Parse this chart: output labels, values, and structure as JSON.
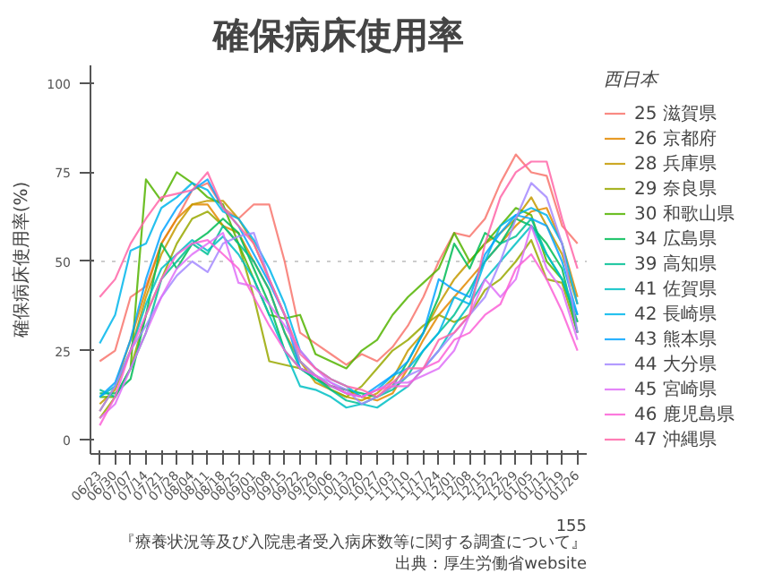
{
  "chart_data": {
    "type": "line",
    "title": "確保病床使用率",
    "ylabel": "確保病床使用率(%)",
    "legend_title": "西日本",
    "legend": "right",
    "categories": [
      "06/23",
      "06/30",
      "07/07",
      "07/14",
      "07/21",
      "07/28",
      "08/04",
      "08/11",
      "08/18",
      "08/25",
      "09/01",
      "09/08",
      "09/15",
      "09/22",
      "09/29",
      "10/06",
      "10/13",
      "10/20",
      "10/27",
      "11/03",
      "11/10",
      "11/17",
      "11/24",
      "12/01",
      "12/08",
      "12/15",
      "12/22",
      "12/29",
      "01/05",
      "01/12",
      "01/19",
      "01/26"
    ],
    "ylim": [
      -4,
      105
    ],
    "yticks": [
      0,
      25,
      50,
      75,
      100
    ],
    "ref_lines": [
      {
        "axis": "y",
        "value": 50,
        "color": "#cccccc",
        "line_style": "dotted"
      }
    ],
    "series": [
      {
        "name": "25 滋賀県",
        "color": "#F8766D",
        "values": [
          22,
          25,
          40,
          43,
          55,
          62,
          70,
          72,
          65,
          62,
          66,
          66,
          50,
          30,
          27,
          24,
          21,
          24,
          22,
          26,
          32,
          40,
          50,
          58,
          57,
          62,
          72,
          80,
          75,
          74,
          60,
          55
        ]
      },
      {
        "name": "26 京都府",
        "color": "#E38900",
        "values": [
          8,
          15,
          28,
          42,
          55,
          62,
          66,
          66,
          60,
          58,
          50,
          42,
          30,
          22,
          18,
          15,
          14,
          12,
          11,
          13,
          20,
          28,
          35,
          40,
          45,
          50,
          55,
          60,
          64,
          65,
          55,
          40
        ]
      },
      {
        "name": "28 兵庫県",
        "color": "#C49A00",
        "values": [
          10,
          14,
          25,
          40,
          52,
          60,
          66,
          67,
          67,
          62,
          55,
          45,
          35,
          22,
          16,
          14,
          12,
          11,
          13,
          17,
          25,
          30,
          38,
          45,
          50,
          55,
          58,
          62,
          68,
          60,
          52,
          38
        ]
      },
      {
        "name": "29 奈良県",
        "color": "#99A800",
        "values": [
          6,
          12,
          20,
          35,
          45,
          55,
          62,
          64,
          60,
          55,
          40,
          22,
          21,
          20,
          18,
          14,
          12,
          15,
          20,
          25,
          28,
          32,
          35,
          33,
          35,
          42,
          45,
          50,
          56,
          45,
          44,
          30
        ]
      },
      {
        "name": "30 和歌山県",
        "color": "#53B400",
        "values": [
          12,
          12,
          20,
          73,
          67,
          75,
          72,
          68,
          66,
          55,
          45,
          35,
          34,
          35,
          24,
          22,
          20,
          25,
          28,
          35,
          40,
          44,
          48,
          58,
          50,
          55,
          60,
          65,
          63,
          50,
          45,
          33
        ]
      },
      {
        "name": "34 広島県",
        "color": "#00BC56",
        "values": [
          13,
          13,
          17,
          35,
          55,
          48,
          55,
          58,
          62,
          58,
          48,
          38,
          25,
          20,
          17,
          15,
          14,
          13,
          12,
          15,
          22,
          30,
          40,
          55,
          48,
          58,
          55,
          62,
          60,
          55,
          48,
          30
        ]
      },
      {
        "name": "39 高知県",
        "color": "#00C094",
        "values": [
          14,
          12,
          20,
          30,
          45,
          50,
          55,
          52,
          60,
          55,
          50,
          42,
          30,
          20,
          17,
          14,
          11,
          10,
          12,
          14,
          18,
          25,
          30,
          35,
          42,
          50,
          55,
          57,
          62,
          52,
          45,
          33
        ]
      },
      {
        "name": "41 佐賀県",
        "color": "#00BFC4",
        "values": [
          12,
          15,
          25,
          38,
          48,
          52,
          56,
          53,
          57,
          52,
          45,
          35,
          25,
          15,
          14,
          12,
          9,
          10,
          9,
          12,
          15,
          20,
          25,
          32,
          38,
          45,
          50,
          55,
          60,
          52,
          45,
          35
        ]
      },
      {
        "name": "42 長崎県",
        "color": "#00B6EB",
        "values": [
          27,
          35,
          53,
          55,
          65,
          68,
          72,
          70,
          64,
          62,
          56,
          48,
          38,
          25,
          20,
          17,
          15,
          12,
          14,
          18,
          20,
          25,
          30,
          40,
          38,
          50,
          60,
          63,
          65,
          63,
          55,
          38
        ]
      },
      {
        "name": "43 熊本県",
        "color": "#06A4FF",
        "values": [
          12,
          16,
          28,
          45,
          58,
          65,
          70,
          73,
          65,
          60,
          52,
          44,
          35,
          20,
          18,
          15,
          13,
          12,
          15,
          18,
          22,
          30,
          45,
          42,
          40,
          52,
          58,
          63,
          62,
          60,
          50,
          35
        ]
      },
      {
        "name": "44 大分県",
        "color": "#A58AFF",
        "values": [
          8,
          15,
          25,
          32,
          40,
          46,
          50,
          47,
          55,
          57,
          58,
          45,
          35,
          22,
          18,
          16,
          14,
          10,
          12,
          15,
          18,
          20,
          25,
          30,
          35,
          40,
          50,
          62,
          72,
          68,
          55,
          30
        ]
      },
      {
        "name": "45 宮崎県",
        "color": "#DF70F8",
        "values": [
          6,
          10,
          20,
          30,
          40,
          48,
          52,
          55,
          58,
          44,
          43,
          38,
          32,
          25,
          20,
          16,
          13,
          12,
          14,
          16,
          16,
          18,
          20,
          25,
          35,
          45,
          40,
          45,
          60,
          48,
          42,
          28
        ]
      },
      {
        "name": "46 鹿児島県",
        "color": "#FB61D7",
        "values": [
          4,
          12,
          25,
          35,
          45,
          52,
          55,
          56,
          52,
          48,
          40,
          32,
          25,
          20,
          18,
          15,
          13,
          12,
          14,
          15,
          15,
          20,
          22,
          28,
          30,
          35,
          38,
          48,
          52,
          45,
          36,
          25
        ]
      },
      {
        "name": "47 沖縄県",
        "color": "#FF66A8",
        "values": [
          40,
          45,
          55,
          62,
          68,
          69,
          70,
          75,
          65,
          60,
          55,
          45,
          35,
          24,
          20,
          17,
          15,
          14,
          12,
          16,
          20,
          20,
          28,
          30,
          35,
          55,
          68,
          75,
          78,
          78,
          62,
          48
        ]
      }
    ],
    "annotations": [
      "出典：厚生労働省website",
      "『療養状況等及び入院患者受入病床数等に関する調査について』",
      "155"
    ]
  }
}
